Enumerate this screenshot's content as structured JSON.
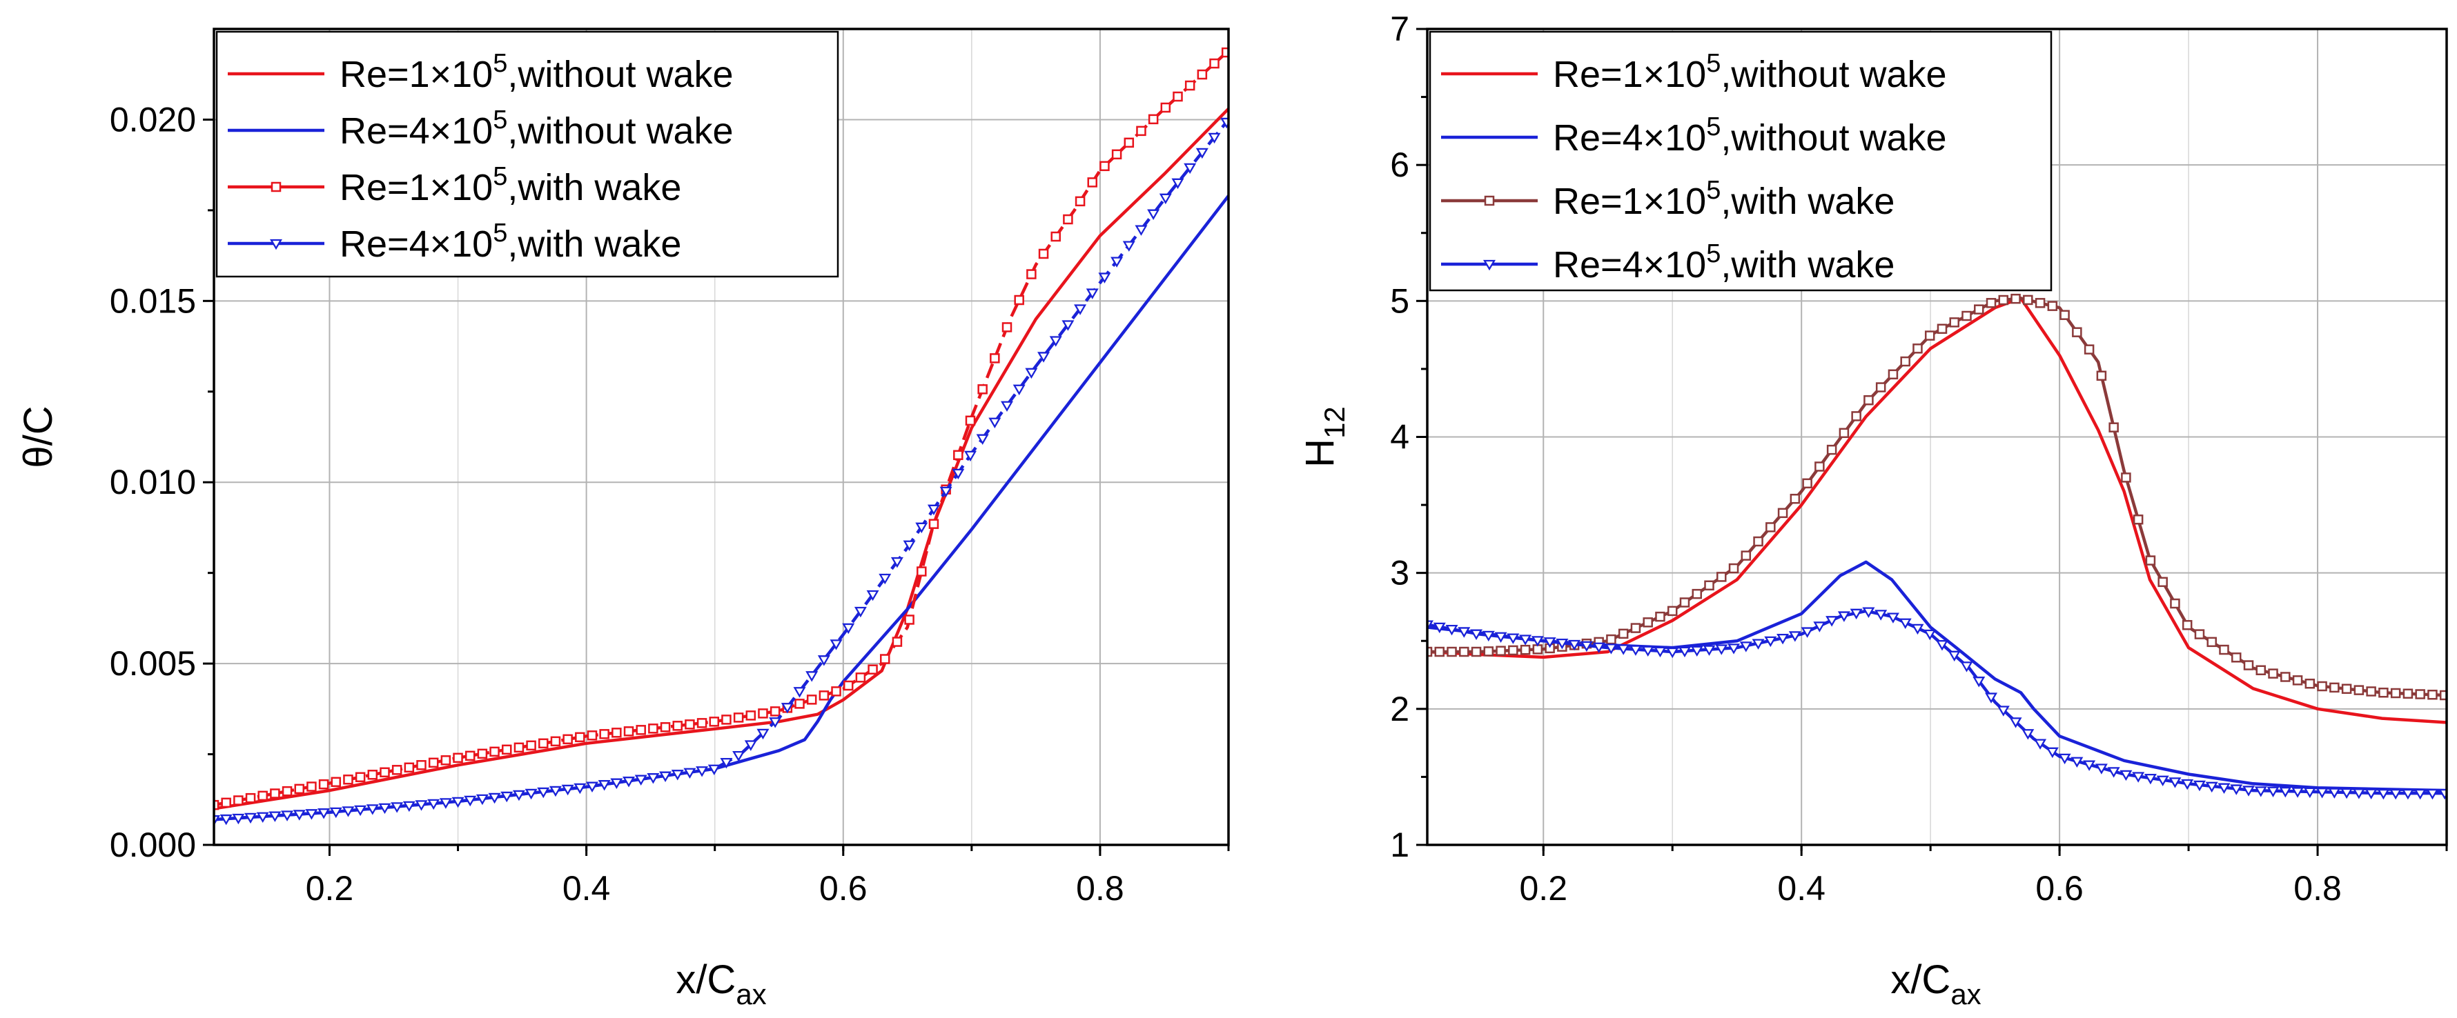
{
  "chart_data": [
    {
      "type": "line",
      "id": "theta",
      "ylabel": "θ/C",
      "xlabel_main": "x/C",
      "xlabel_sub": "ax",
      "xlim": [
        0.11,
        0.9
      ],
      "ylim": [
        0,
        0.0225
      ],
      "xticks": [
        0.2,
        0.4,
        0.6,
        0.8
      ],
      "xtick_labels": [
        "0.2",
        "0.4",
        "0.6",
        "0.8"
      ],
      "yticks": [
        0,
        0.005,
        0.01,
        0.015,
        0.02
      ],
      "ytick_labels": [
        "0.000",
        "0.005",
        "0.010",
        "0.015",
        "0.020"
      ],
      "legend_position": "top-left",
      "series": [
        {
          "name": "Re=1×10^5,without wake",
          "label_pre": "Re=1×10",
          "label_sup": "5",
          "label_post": ",without wake",
          "color": "#e8141c",
          "style": "solid",
          "marker": "none",
          "x": [
            0.11,
            0.2,
            0.3,
            0.4,
            0.5,
            0.55,
            0.58,
            0.6,
            0.63,
            0.65,
            0.67,
            0.7,
            0.75,
            0.8,
            0.85,
            0.9
          ],
          "y": [
            0.001,
            0.0015,
            0.0022,
            0.0028,
            0.0032,
            0.0034,
            0.0036,
            0.004,
            0.0048,
            0.0065,
            0.0088,
            0.0115,
            0.0145,
            0.0168,
            0.0185,
            0.0203
          ]
        },
        {
          "name": "Re=4×10^5,without wake",
          "label_pre": "Re=4×10",
          "label_sup": "5",
          "label_post": ",without wake",
          "color": "#1a22d8",
          "style": "solid",
          "marker": "none",
          "x": [
            0.11,
            0.2,
            0.3,
            0.4,
            0.5,
            0.53,
            0.55,
            0.57,
            0.58,
            0.59,
            0.6,
            0.65,
            0.7,
            0.75,
            0.8,
            0.85,
            0.9
          ],
          "y": [
            0.0007,
            0.0009,
            0.0012,
            0.0016,
            0.0021,
            0.0024,
            0.0026,
            0.0029,
            0.0034,
            0.004,
            0.0045,
            0.0065,
            0.0087,
            0.011,
            0.0133,
            0.0156,
            0.0179
          ]
        },
        {
          "name": "Re=1×10^5,with wake",
          "label_pre": "Re=1×10",
          "label_sup": "5",
          "label_post": ",with wake",
          "color": "#e8141c",
          "style": "dashed",
          "marker": "square",
          "x": [
            0.11,
            0.2,
            0.3,
            0.4,
            0.5,
            0.55,
            0.6,
            0.63,
            0.65,
            0.67,
            0.7,
            0.73,
            0.75,
            0.78,
            0.8,
            0.85,
            0.9
          ],
          "y": [
            0.0011,
            0.0017,
            0.0024,
            0.003,
            0.0034,
            0.0037,
            0.0043,
            0.005,
            0.006,
            0.0088,
            0.0118,
            0.0145,
            0.016,
            0.0175,
            0.0186,
            0.0203,
            0.0219
          ]
        },
        {
          "name": "Re=4×10^5,with wake",
          "label_pre": "Re=4×10",
          "label_sup": "5",
          "label_post": ",with wake",
          "color": "#1a22d8",
          "style": "dashed",
          "marker": "triangle-down",
          "x": [
            0.11,
            0.2,
            0.3,
            0.4,
            0.5,
            0.52,
            0.55,
            0.6,
            0.65,
            0.7,
            0.75,
            0.8,
            0.85,
            0.9
          ],
          "y": [
            0.0007,
            0.0009,
            0.0012,
            0.0016,
            0.0021,
            0.0025,
            0.0035,
            0.0058,
            0.0082,
            0.0108,
            0.0132,
            0.0155,
            0.0178,
            0.02
          ]
        }
      ]
    },
    {
      "type": "line",
      "id": "h12",
      "ylabel_main": "H",
      "ylabel_sub": "12",
      "xlabel_main": "x/C",
      "xlabel_sub": "ax",
      "xlim": [
        0.11,
        0.9
      ],
      "ylim": [
        1,
        7
      ],
      "xticks": [
        0.2,
        0.4,
        0.6,
        0.8
      ],
      "xtick_labels": [
        "0.2",
        "0.4",
        "0.6",
        "0.8"
      ],
      "yticks": [
        1,
        2,
        3,
        4,
        5,
        6,
        7
      ],
      "ytick_labels": [
        "1",
        "2",
        "3",
        "4",
        "5",
        "6",
        "7"
      ],
      "legend_position": "top-left",
      "series": [
        {
          "name": "Re=1×10^5,without wake",
          "label_pre": "Re=1×10",
          "label_sup": "5",
          "label_post": ",without wake",
          "color": "#e8141c",
          "style": "solid",
          "marker": "none",
          "x": [
            0.11,
            0.15,
            0.2,
            0.25,
            0.3,
            0.35,
            0.4,
            0.45,
            0.5,
            0.55,
            0.57,
            0.6,
            0.63,
            0.65,
            0.67,
            0.7,
            0.75,
            0.8,
            0.85,
            0.9
          ],
          "y": [
            2.42,
            2.4,
            2.38,
            2.42,
            2.65,
            2.95,
            3.5,
            4.15,
            4.65,
            4.95,
            5.02,
            4.6,
            4.05,
            3.6,
            2.95,
            2.45,
            2.15,
            2.0,
            1.93,
            1.9
          ]
        },
        {
          "name": "Re=4×10^5,without wake",
          "label_pre": "Re=4×10",
          "label_sup": "5",
          "label_post": ",without wake",
          "color": "#1a22d8",
          "style": "solid",
          "marker": "none",
          "x": [
            0.11,
            0.15,
            0.2,
            0.25,
            0.3,
            0.35,
            0.4,
            0.43,
            0.45,
            0.47,
            0.5,
            0.52,
            0.55,
            0.57,
            0.58,
            0.6,
            0.65,
            0.7,
            0.75,
            0.8,
            0.85,
            0.9
          ],
          "y": [
            2.6,
            2.56,
            2.5,
            2.47,
            2.45,
            2.5,
            2.7,
            2.98,
            3.08,
            2.95,
            2.6,
            2.45,
            2.22,
            2.12,
            2.0,
            1.8,
            1.62,
            1.52,
            1.45,
            1.42,
            1.41,
            1.4
          ]
        },
        {
          "name": "Re=1×10^5,with wake",
          "label_pre": "Re=1×10",
          "label_sup": "5",
          "label_post": ",with wake",
          "color": "#8b3a3a",
          "style": "solid",
          "marker": "square",
          "x": [
            0.11,
            0.15,
            0.2,
            0.25,
            0.3,
            0.35,
            0.4,
            0.45,
            0.5,
            0.55,
            0.57,
            0.6,
            0.63,
            0.65,
            0.67,
            0.7,
            0.75,
            0.8,
            0.85,
            0.9
          ],
          "y": [
            2.42,
            2.42,
            2.44,
            2.5,
            2.72,
            3.05,
            3.6,
            4.25,
            4.75,
            5.0,
            5.02,
            4.95,
            4.55,
            3.75,
            3.1,
            2.6,
            2.3,
            2.17,
            2.12,
            2.1
          ]
        },
        {
          "name": "Re=4×10^5,with wake",
          "label_pre": "Re=4×10",
          "label_sup": "5",
          "label_post": ",with wake",
          "color": "#1a22d8",
          "style": "solid",
          "marker": "triangle-down",
          "x": [
            0.11,
            0.15,
            0.2,
            0.25,
            0.3,
            0.35,
            0.4,
            0.43,
            0.45,
            0.47,
            0.5,
            0.53,
            0.55,
            0.58,
            0.6,
            0.65,
            0.7,
            0.75,
            0.8,
            0.85,
            0.9
          ],
          "y": [
            2.62,
            2.55,
            2.5,
            2.45,
            2.42,
            2.45,
            2.55,
            2.68,
            2.72,
            2.68,
            2.55,
            2.3,
            2.05,
            1.78,
            1.65,
            1.52,
            1.45,
            1.4,
            1.39,
            1.38,
            1.38
          ]
        }
      ]
    }
  ]
}
